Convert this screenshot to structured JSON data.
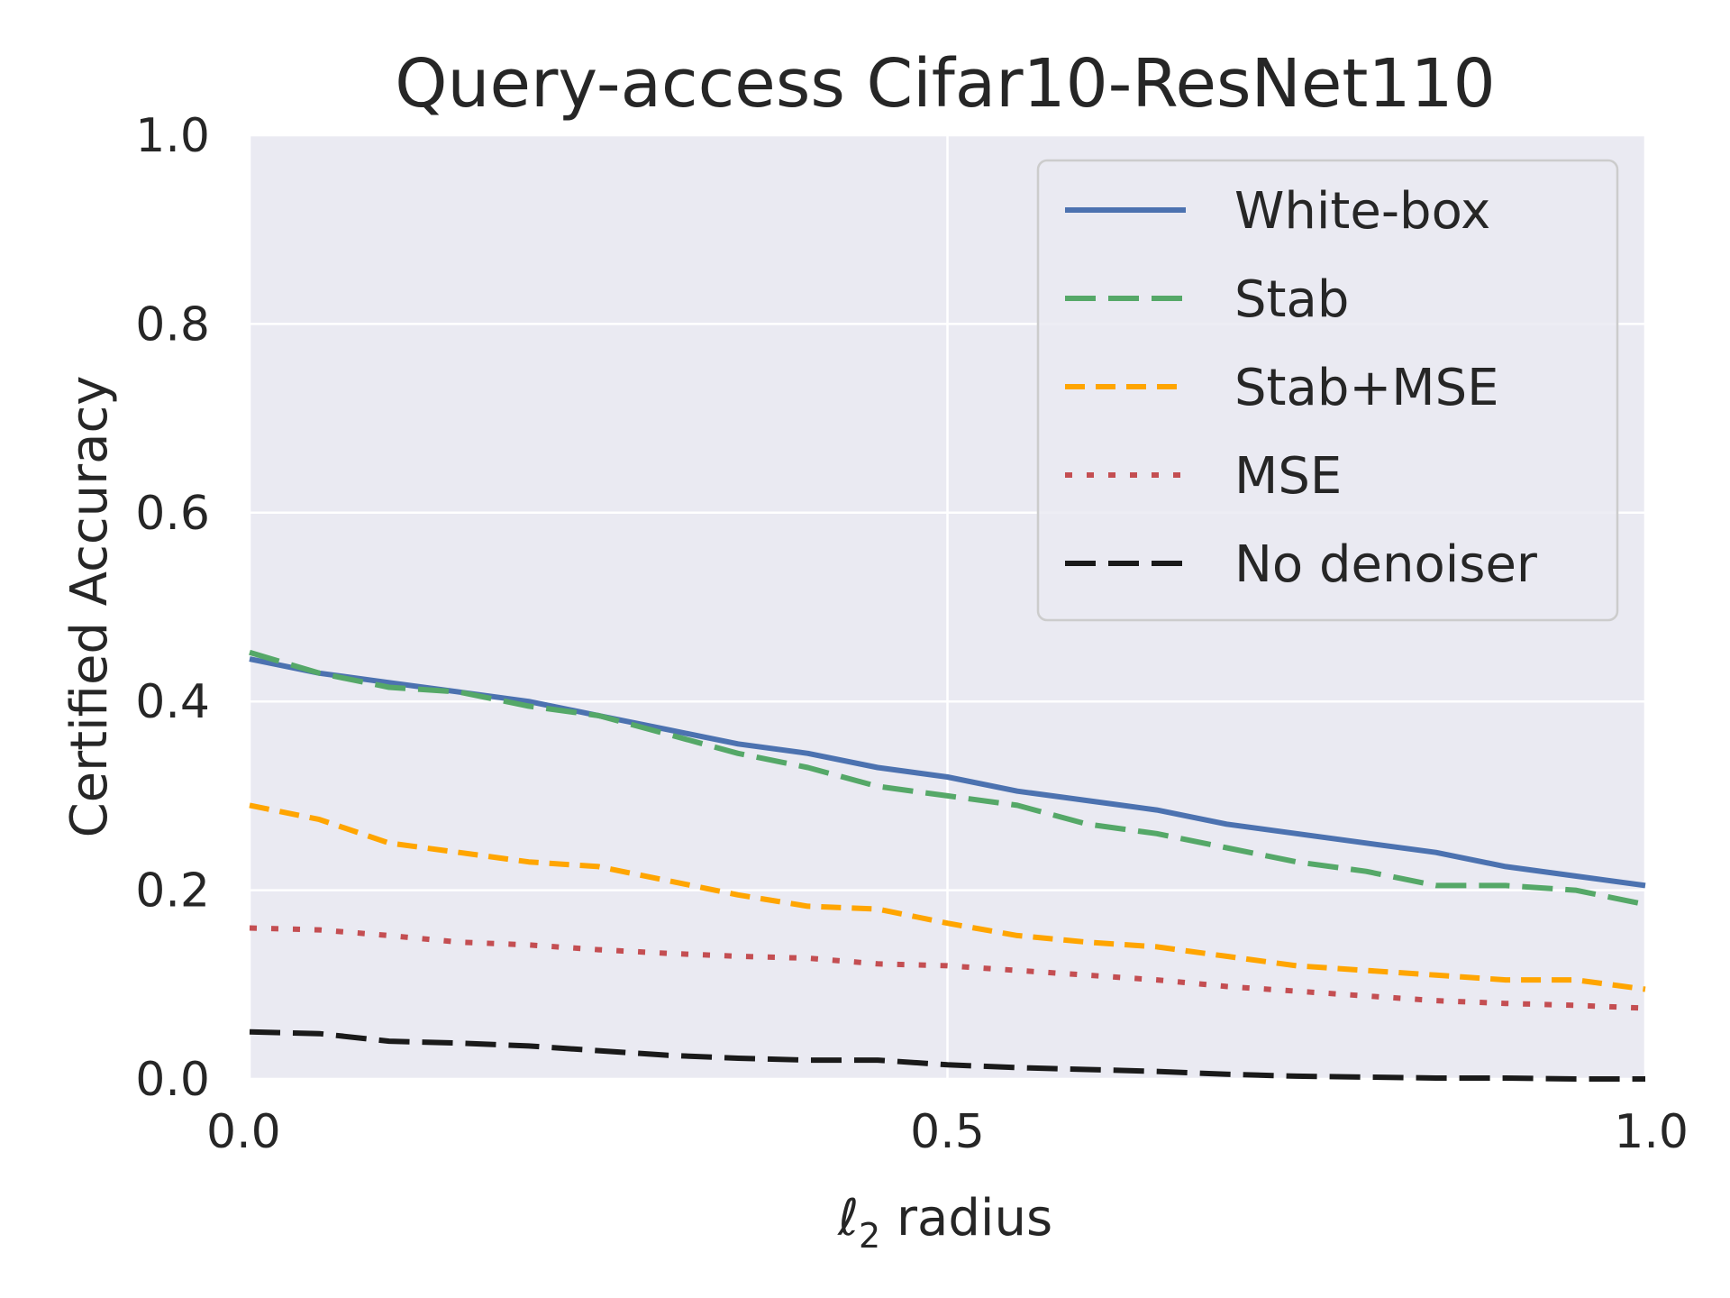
{
  "chart_data": {
    "type": "line",
    "title": "Query-access Cifar10-ResNet110",
    "xlabel_main": "ℓ",
    "xlabel_sub": "2",
    "xlabel_rest": " radius",
    "ylabel": "Certified Accuracy",
    "xlim": [
      0.0,
      1.0
    ],
    "ylim": [
      0.0,
      1.0
    ],
    "x_ticks": [
      0.0,
      0.5,
      1.0
    ],
    "x_tick_labels": [
      "0.0",
      "0.5",
      "1.0"
    ],
    "y_ticks": [
      0.0,
      0.2,
      0.4,
      0.6,
      0.8,
      1.0
    ],
    "y_tick_labels": [
      "0.0",
      "0.2",
      "0.4",
      "0.6",
      "0.8",
      "1.0"
    ],
    "grid": true,
    "legend_position": "top-right",
    "series": [
      {
        "name": "White-box",
        "color": "#4c72b0",
        "dash": "solid",
        "x": [
          0.0,
          0.05,
          0.1,
          0.15,
          0.2,
          0.25,
          0.3,
          0.35,
          0.4,
          0.45,
          0.5,
          0.55,
          0.6,
          0.65,
          0.7,
          0.75,
          0.8,
          0.85,
          0.9,
          0.95,
          1.0
        ],
        "y": [
          0.445,
          0.43,
          0.42,
          0.41,
          0.4,
          0.385,
          0.37,
          0.355,
          0.345,
          0.33,
          0.32,
          0.305,
          0.295,
          0.285,
          0.27,
          0.26,
          0.25,
          0.24,
          0.225,
          0.215,
          0.205
        ]
      },
      {
        "name": "Stab",
        "color": "#55a868",
        "dash": "long-dash",
        "x": [
          0.0,
          0.05,
          0.1,
          0.15,
          0.2,
          0.25,
          0.3,
          0.35,
          0.4,
          0.45,
          0.5,
          0.55,
          0.6,
          0.65,
          0.7,
          0.75,
          0.8,
          0.85,
          0.9,
          0.95,
          1.0
        ],
        "y": [
          0.452,
          0.43,
          0.415,
          0.41,
          0.395,
          0.385,
          0.365,
          0.345,
          0.33,
          0.31,
          0.3,
          0.29,
          0.27,
          0.26,
          0.245,
          0.23,
          0.22,
          0.205,
          0.205,
          0.2,
          0.185
        ]
      },
      {
        "name": "Stab+MSE",
        "color": "#ffa500",
        "dash": "dash",
        "x": [
          0.0,
          0.05,
          0.1,
          0.15,
          0.2,
          0.25,
          0.3,
          0.35,
          0.4,
          0.45,
          0.5,
          0.55,
          0.6,
          0.65,
          0.7,
          0.75,
          0.8,
          0.85,
          0.9,
          0.95,
          1.0
        ],
        "y": [
          0.29,
          0.275,
          0.25,
          0.24,
          0.23,
          0.225,
          0.21,
          0.195,
          0.183,
          0.18,
          0.165,
          0.152,
          0.145,
          0.14,
          0.13,
          0.12,
          0.115,
          0.11,
          0.105,
          0.105,
          0.095
        ]
      },
      {
        "name": "MSE",
        "color": "#c44e52",
        "dash": "dot",
        "x": [
          0.0,
          0.05,
          0.1,
          0.15,
          0.2,
          0.25,
          0.3,
          0.35,
          0.4,
          0.45,
          0.5,
          0.55,
          0.6,
          0.65,
          0.7,
          0.75,
          0.8,
          0.85,
          0.9,
          0.95,
          1.0
        ],
        "y": [
          0.16,
          0.158,
          0.152,
          0.145,
          0.142,
          0.137,
          0.133,
          0.13,
          0.128,
          0.122,
          0.12,
          0.115,
          0.11,
          0.105,
          0.098,
          0.093,
          0.088,
          0.083,
          0.08,
          0.078,
          0.075
        ]
      },
      {
        "name": "No denoiser",
        "color": "#1a1a1a",
        "dash": "long-dash",
        "x": [
          0.0,
          0.05,
          0.1,
          0.15,
          0.2,
          0.25,
          0.3,
          0.35,
          0.4,
          0.45,
          0.5,
          0.55,
          0.6,
          0.65,
          0.7,
          0.75,
          0.8,
          0.85,
          0.9,
          0.95,
          1.0
        ],
        "y": [
          0.05,
          0.048,
          0.04,
          0.038,
          0.035,
          0.03,
          0.025,
          0.022,
          0.02,
          0.02,
          0.015,
          0.012,
          0.01,
          0.008,
          0.005,
          0.003,
          0.002,
          0.001,
          0.001,
          0.0,
          0.0
        ]
      }
    ]
  }
}
